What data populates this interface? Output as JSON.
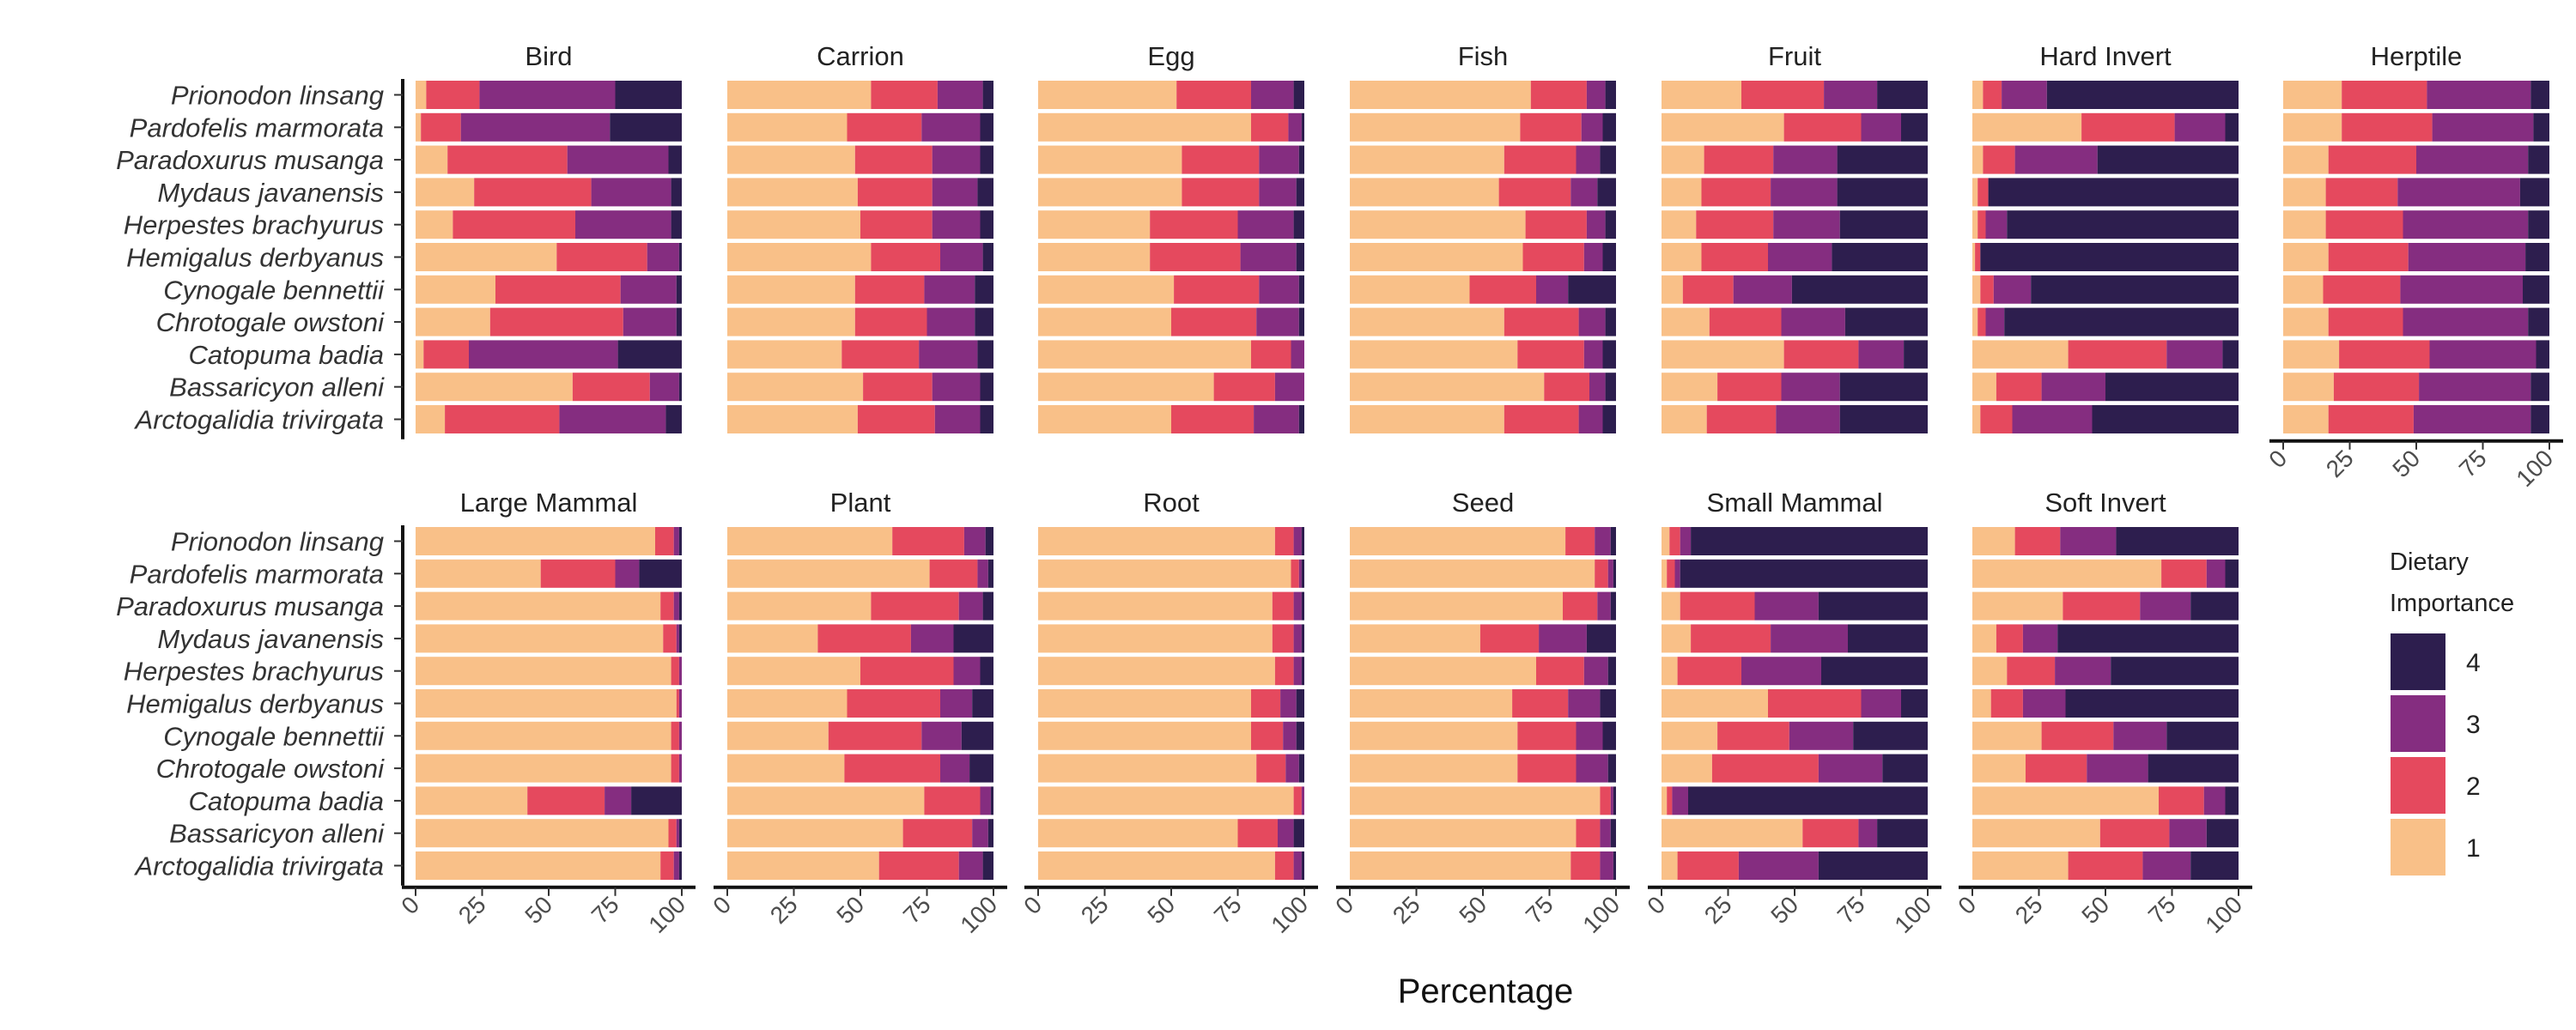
{
  "chart_data": {
    "type": "bar",
    "orientation": "horizontal",
    "stacked": true,
    "xlabel": "Percentage",
    "ylabel": "",
    "xlim": [
      0,
      100
    ],
    "xticks": [
      "0",
      "25",
      "50",
      "75",
      "100"
    ],
    "grid": false,
    "legend": {
      "title": "Dietary\nImportance",
      "placement": "right",
      "entries": [
        {
          "label": "4",
          "color": "#2d1e4e"
        },
        {
          "label": "3",
          "color": "#852d80"
        },
        {
          "label": "2",
          "color": "#e5495e"
        },
        {
          "label": "1",
          "color": "#f9c088"
        }
      ]
    },
    "species": [
      "Prionodon linsang",
      "Pardofelis marmorata",
      "Paradoxurus musanga",
      "Mydaus javanensis",
      "Herpestes brachyurus",
      "Hemigalus derbyanus",
      "Cynogale bennettii",
      "Chrotogale owstoni",
      "Catopuma badia",
      "Bassaricyon alleni",
      "Arctogalidia trivirgata"
    ],
    "series_order": [
      "1",
      "2",
      "3",
      "4"
    ],
    "panels": [
      {
        "title": "Bird",
        "values": [
          [
            4,
            20,
            51,
            25
          ],
          [
            2,
            15,
            56,
            27
          ],
          [
            12,
            45,
            38,
            5
          ],
          [
            22,
            44,
            30,
            4
          ],
          [
            14,
            46,
            36,
            4
          ],
          [
            53,
            34,
            12,
            1
          ],
          [
            30,
            47,
            21,
            2
          ],
          [
            28,
            50,
            20,
            2
          ],
          [
            3,
            17,
            56,
            24
          ],
          [
            59,
            29,
            11,
            1
          ],
          [
            11,
            43,
            40,
            6
          ]
        ]
      },
      {
        "title": "Carrion",
        "values": [
          [
            54,
            25,
            17,
            4
          ],
          [
            45,
            28,
            22,
            5
          ],
          [
            48,
            29,
            18,
            5
          ],
          [
            49,
            28,
            17,
            6
          ],
          [
            50,
            27,
            18,
            5
          ],
          [
            54,
            26,
            16,
            4
          ],
          [
            48,
            26,
            19,
            7
          ],
          [
            48,
            27,
            18,
            7
          ],
          [
            43,
            29,
            22,
            6
          ],
          [
            51,
            26,
            18,
            5
          ],
          [
            49,
            29,
            17,
            5
          ]
        ]
      },
      {
        "title": "Egg",
        "values": [
          [
            52,
            28,
            16,
            4
          ],
          [
            80,
            14,
            5,
            1
          ],
          [
            54,
            29,
            15,
            2
          ],
          [
            54,
            29,
            14,
            3
          ],
          [
            42,
            33,
            21,
            4
          ],
          [
            42,
            34,
            21,
            3
          ],
          [
            51,
            32,
            15,
            2
          ],
          [
            50,
            32,
            16,
            2
          ],
          [
            80,
            15,
            5,
            0
          ],
          [
            66,
            23,
            11,
            0
          ],
          [
            50,
            31,
            17,
            2
          ]
        ]
      },
      {
        "title": "Fish",
        "values": [
          [
            68,
            21,
            7,
            4
          ],
          [
            64,
            23,
            8,
            5
          ],
          [
            58,
            27,
            9,
            6
          ],
          [
            56,
            27,
            10,
            7
          ],
          [
            66,
            23,
            7,
            4
          ],
          [
            65,
            23,
            7,
            5
          ],
          [
            45,
            25,
            12,
            18
          ],
          [
            58,
            28,
            10,
            4
          ],
          [
            63,
            25,
            7,
            5
          ],
          [
            73,
            17,
            6,
            4
          ],
          [
            58,
            28,
            9,
            5
          ]
        ]
      },
      {
        "title": "Fruit",
        "values": [
          [
            30,
            31,
            20,
            19
          ],
          [
            46,
            29,
            15,
            10
          ],
          [
            16,
            26,
            24,
            34
          ],
          [
            15,
            26,
            25,
            34
          ],
          [
            13,
            29,
            25,
            33
          ],
          [
            15,
            25,
            24,
            36
          ],
          [
            8,
            19,
            22,
            51
          ],
          [
            18,
            27,
            24,
            31
          ],
          [
            46,
            28,
            17,
            9
          ],
          [
            21,
            24,
            22,
            33
          ],
          [
            17,
            26,
            24,
            33
          ]
        ]
      },
      {
        "title": "Hard Invert",
        "values": [
          [
            4,
            7,
            17,
            72
          ],
          [
            41,
            35,
            19,
            5
          ],
          [
            4,
            12,
            31,
            53
          ],
          [
            2,
            4,
            0,
            94
          ],
          [
            2,
            3,
            8,
            87
          ],
          [
            1,
            2,
            0,
            97
          ],
          [
            3,
            5,
            14,
            78
          ],
          [
            2,
            3,
            7,
            88
          ],
          [
            36,
            37,
            21,
            6
          ],
          [
            9,
            17,
            24,
            50
          ],
          [
            3,
            12,
            30,
            55
          ]
        ]
      },
      {
        "title": "Herptile",
        "values": [
          [
            22,
            32,
            39,
            7
          ],
          [
            22,
            34,
            38,
            6
          ],
          [
            17,
            33,
            42,
            8
          ],
          [
            16,
            27,
            46,
            11
          ],
          [
            16,
            29,
            47,
            8
          ],
          [
            17,
            30,
            44,
            9
          ],
          [
            15,
            29,
            46,
            10
          ],
          [
            17,
            28,
            47,
            8
          ],
          [
            21,
            34,
            40,
            5
          ],
          [
            19,
            32,
            42,
            7
          ],
          [
            17,
            32,
            44,
            7
          ]
        ]
      },
      {
        "title": "Large Mammal",
        "values": [
          [
            90,
            7,
            2,
            1
          ],
          [
            47,
            28,
            9,
            16
          ],
          [
            92,
            5,
            2,
            1
          ],
          [
            93,
            5,
            1,
            1
          ],
          [
            96,
            3,
            1,
            0
          ],
          [
            98,
            1,
            1,
            0
          ],
          [
            96,
            3,
            1,
            0
          ],
          [
            96,
            3,
            1,
            0
          ],
          [
            42,
            29,
            10,
            19
          ],
          [
            95,
            3,
            1,
            1
          ],
          [
            92,
            5,
            2,
            1
          ]
        ]
      },
      {
        "title": "Plant",
        "values": [
          [
            62,
            27,
            8,
            3
          ],
          [
            76,
            18,
            4,
            2
          ],
          [
            54,
            33,
            9,
            4
          ],
          [
            34,
            35,
            16,
            15
          ],
          [
            50,
            35,
            10,
            5
          ],
          [
            45,
            35,
            12,
            8
          ],
          [
            38,
            35,
            15,
            12
          ],
          [
            44,
            36,
            11,
            9
          ],
          [
            74,
            21,
            4,
            1
          ],
          [
            66,
            26,
            6,
            2
          ],
          [
            57,
            30,
            9,
            4
          ]
        ]
      },
      {
        "title": "Root",
        "values": [
          [
            89,
            7,
            3,
            1
          ],
          [
            95,
            3,
            1,
            1
          ],
          [
            88,
            8,
            3,
            1
          ],
          [
            88,
            8,
            3,
            1
          ],
          [
            89,
            7,
            3,
            1
          ],
          [
            80,
            11,
            6,
            3
          ],
          [
            80,
            12,
            5,
            3
          ],
          [
            82,
            11,
            5,
            2
          ],
          [
            96,
            3,
            1,
            0
          ],
          [
            75,
            15,
            6,
            4
          ],
          [
            89,
            7,
            3,
            1
          ]
        ]
      },
      {
        "title": "Seed",
        "values": [
          [
            81,
            11,
            6,
            2
          ],
          [
            92,
            5,
            2,
            1
          ],
          [
            80,
            13,
            5,
            2
          ],
          [
            49,
            22,
            18,
            11
          ],
          [
            70,
            18,
            9,
            3
          ],
          [
            61,
            21,
            12,
            6
          ],
          [
            63,
            22,
            10,
            5
          ],
          [
            63,
            22,
            12,
            3
          ],
          [
            94,
            4,
            1,
            1
          ],
          [
            85,
            9,
            4,
            2
          ],
          [
            83,
            11,
            5,
            1
          ]
        ]
      },
      {
        "title": "Small Mammal",
        "values": [
          [
            3,
            4,
            4,
            89
          ],
          [
            2,
            3,
            2,
            93
          ],
          [
            7,
            28,
            24,
            41
          ],
          [
            11,
            30,
            29,
            30
          ],
          [
            6,
            24,
            30,
            40
          ],
          [
            40,
            35,
            15,
            10
          ],
          [
            21,
            27,
            24,
            28
          ],
          [
            19,
            40,
            24,
            17
          ],
          [
            2,
            2,
            6,
            90
          ],
          [
            53,
            21,
            7,
            19
          ],
          [
            6,
            23,
            30,
            41
          ]
        ]
      },
      {
        "title": "Soft Invert",
        "values": [
          [
            16,
            17,
            21,
            46
          ],
          [
            71,
            17,
            7,
            5
          ],
          [
            34,
            29,
            19,
            18
          ],
          [
            9,
            10,
            13,
            68
          ],
          [
            13,
            18,
            21,
            48
          ],
          [
            7,
            12,
            16,
            65
          ],
          [
            26,
            27,
            20,
            27
          ],
          [
            20,
            23,
            23,
            34
          ],
          [
            70,
            17,
            8,
            5
          ],
          [
            48,
            26,
            14,
            12
          ],
          [
            36,
            28,
            18,
            18
          ]
        ]
      }
    ]
  }
}
